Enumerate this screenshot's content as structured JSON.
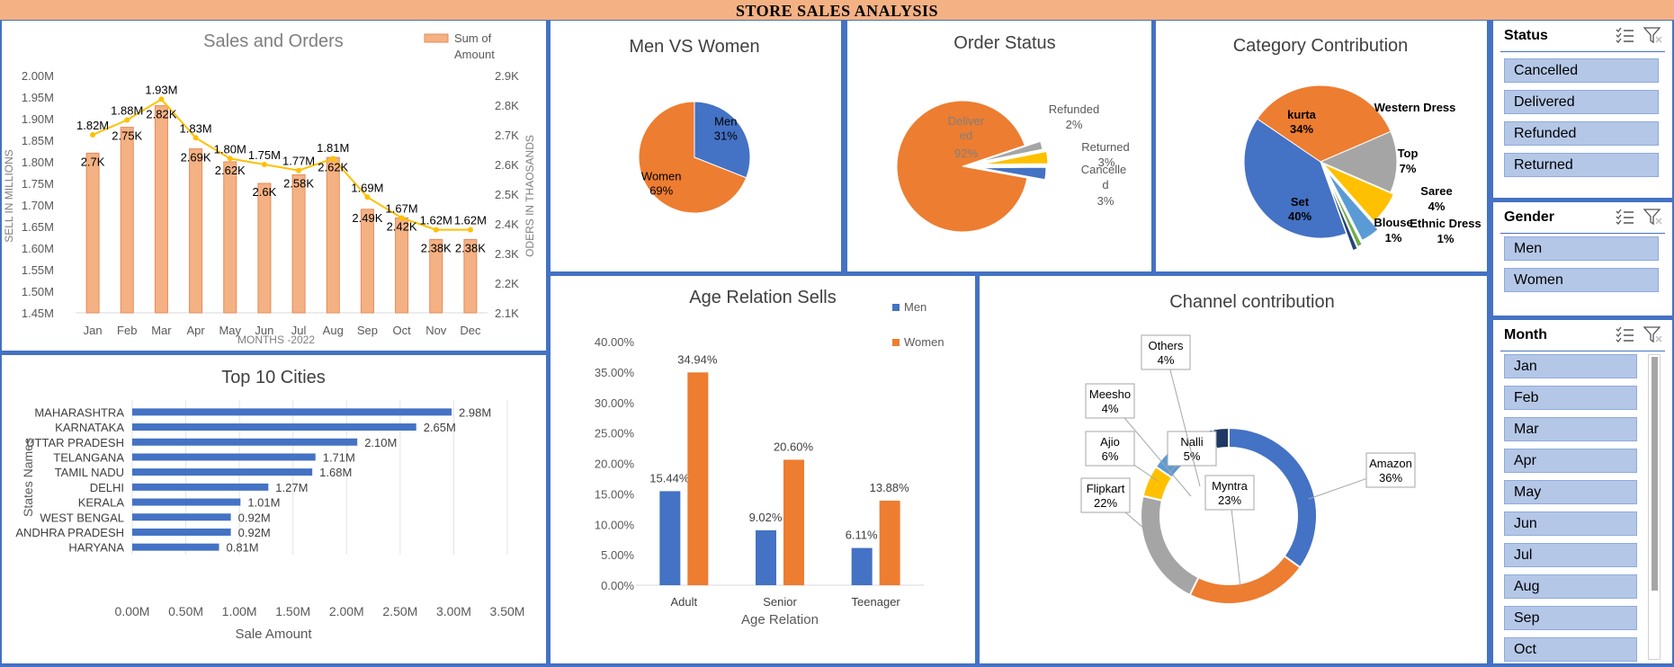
{
  "banner": {
    "title": "STORE SALES ANALYSIS"
  },
  "colors": {
    "blue": "#4472C4",
    "orange": "#ED7D31",
    "gray": "#A5A5A5",
    "yellow": "#FFC000",
    "lightblue": "#5B9BD5",
    "green": "#70AD47",
    "navy": "#264478",
    "peach": "#F4B183",
    "slicer": "#B4C7E7"
  },
  "chart_data": [
    {
      "type": "bar",
      "title": "Sales and Orders",
      "categories": [
        "Jan",
        "Feb",
        "Mar",
        "Apr",
        "May",
        "Jun",
        "Jul",
        "Aug",
        "Sep",
        "Oct",
        "Nov",
        "Dec"
      ],
      "series": [
        {
          "name": "Sum of Amount",
          "type": "bar",
          "values": [
            1.82,
            1.88,
            1.93,
            1.83,
            1.8,
            1.75,
            1.77,
            1.81,
            1.69,
            1.67,
            1.62,
            1.62
          ],
          "labels": [
            "1.82M",
            "1.88M",
            "1.93M",
            "1.83M",
            "1.80M",
            "1.75M",
            "1.77M",
            "1.81M",
            "1.69M",
            "1.67M",
            "1.62M",
            "1.62M"
          ]
        },
        {
          "name": "",
          "type": "line",
          "values": [
            2.7,
            2.75,
            2.82,
            2.69,
            2.62,
            2.6,
            2.58,
            2.62,
            2.49,
            2.42,
            2.38,
            2.38
          ],
          "labels": [
            "2.7K",
            "2.75K",
            "2.82K",
            "2.69K",
            "2.62K",
            "2.6K",
            "2.58K",
            "2.62K",
            "2.49K",
            "2.42K",
            "2.38K",
            "2.38K"
          ]
        }
      ],
      "legend_lines": [
        "Sum of",
        "Amount"
      ],
      "xlabel": "MONTHS -2022",
      "ylabel": "SELL IN MILLIONS",
      "y2label": "ODERS IN THAOSANDS",
      "ylim": [
        1.45,
        2.0
      ],
      "y2lim": [
        2.1,
        2.9
      ],
      "yticks": [
        "2.00M",
        "1.95M",
        "1.90M",
        "1.85M",
        "1.80M",
        "1.75M",
        "1.70M",
        "1.65M",
        "1.60M",
        "1.55M",
        "1.50M",
        "1.45M"
      ],
      "y2ticks": [
        "2.9K",
        "2.8K",
        "2.7K",
        "2.6K",
        "2.5K",
        "2.4K",
        "2.3K",
        "2.2K",
        "2.1K"
      ]
    },
    {
      "type": "pie",
      "title": "Men VS Women",
      "labels": [
        "Men",
        "Women"
      ],
      "values": [
        31,
        69
      ],
      "pct_labels": [
        "31%",
        "69%"
      ]
    },
    {
      "type": "pie",
      "title": "Order Status",
      "labels": [
        "Delivered",
        "Refunded",
        "Returned",
        "Cancelled"
      ],
      "values": [
        92,
        2,
        3,
        3
      ],
      "display_labels": [
        [
          "Deliver",
          "ed",
          "92%"
        ],
        [
          "Refunded",
          "2%"
        ],
        [
          "Returned",
          "3%"
        ],
        [
          "Cancelle",
          "d",
          "3%"
        ]
      ]
    },
    {
      "type": "pie",
      "title": "Category Contribution",
      "labels": [
        "Set",
        "kurta",
        "Western Dress",
        "Top",
        "Saree",
        "Blouse",
        "Ethnic Dress"
      ],
      "values": [
        40,
        34,
        13,
        7,
        4,
        1,
        1
      ],
      "pct_labels": [
        "40%",
        "34%",
        "",
        "7%",
        "4%",
        "1%",
        "1%"
      ]
    },
    {
      "type": "bar",
      "orientation": "horizontal",
      "title": "Top 10 Cities",
      "categories": [
        "MAHARASHTRA",
        "KARNATAKA",
        "UTTAR PRADESH",
        "TELANGANA",
        "TAMIL NADU",
        "DELHI",
        "KERALA",
        "WEST BENGAL",
        "ANDHRA PRADESH",
        "HARYANA"
      ],
      "values": [
        2.98,
        2.65,
        2.1,
        1.71,
        1.68,
        1.27,
        1.01,
        0.92,
        0.92,
        0.81
      ],
      "labels": [
        "2.98M",
        "2.65M",
        "2.10M",
        "1.71M",
        "1.68M",
        "1.27M",
        "1.01M",
        "0.92M",
        "0.92M",
        "0.81M"
      ],
      "xlabel": "Sale Amount",
      "ylabel": "States Names",
      "xlim": [
        0,
        3.5
      ],
      "xticks": [
        "0.00M",
        "0.50M",
        "1.00M",
        "1.50M",
        "2.00M",
        "2.50M",
        "3.00M",
        "3.50M"
      ]
    },
    {
      "type": "bar",
      "title": "Age Relation Sells",
      "categories": [
        "Adult",
        "Senior",
        "Teenager"
      ],
      "series": [
        {
          "name": "Men",
          "values": [
            15.44,
            9.02,
            6.11
          ],
          "labels": [
            "15.44%",
            "9.02%",
            "6.11%"
          ]
        },
        {
          "name": "Women",
          "values": [
            34.94,
            20.6,
            13.88
          ],
          "labels": [
            "34.94%",
            "20.60%",
            "13.88%"
          ]
        }
      ],
      "xlabel": "Age Relation",
      "ylim": [
        0,
        40
      ],
      "yticks": [
        "40.00%",
        "35.00%",
        "30.00%",
        "25.00%",
        "20.00%",
        "15.00%",
        "10.00%",
        "5.00%",
        "0.00%"
      ]
    },
    {
      "type": "pie",
      "subtype": "doughnut",
      "title": "Channel contribution",
      "labels": [
        "Amazon",
        "Myntra",
        "Flipkart",
        "Ajio",
        "Nalli",
        "Meesho",
        "Others",
        ""
      ],
      "values": [
        36,
        23,
        22,
        6,
        5,
        4,
        4,
        3
      ],
      "pct_labels": [
        "36%",
        "23%",
        "22%",
        "6%",
        "5%",
        "4%",
        "4%",
        ""
      ]
    }
  ],
  "slicers": {
    "status": {
      "title": "Status",
      "items": [
        "Cancelled",
        "Delivered",
        "Refunded",
        "Returned"
      ]
    },
    "gender": {
      "title": "Gender",
      "items": [
        "Men",
        "Women"
      ]
    },
    "month": {
      "title": "Month",
      "items": [
        "Jan",
        "Feb",
        "Mar",
        "Apr",
        "May",
        "Jun",
        "Jul",
        "Aug",
        "Sep",
        "Oct"
      ]
    }
  }
}
